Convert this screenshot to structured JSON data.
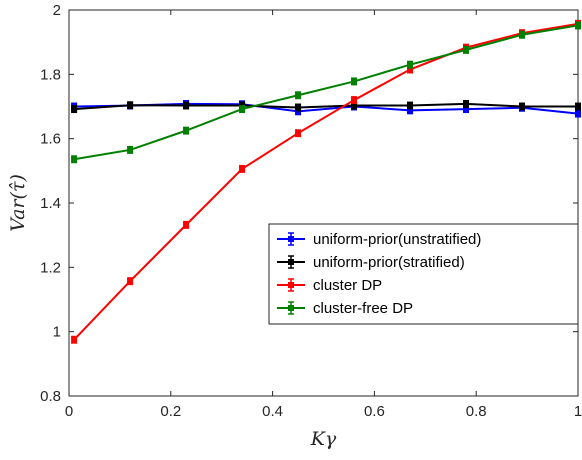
{
  "chart_data": {
    "type": "line",
    "xlabel": "Kγ",
    "ylabel": "Var(τ̂)",
    "xlim": [
      0,
      1
    ],
    "ylim": [
      0.8,
      2
    ],
    "xticks": [
      "0",
      "0.2",
      "0.4",
      "0.6",
      "0.8",
      "1"
    ],
    "yticks": [
      "0.8",
      "1",
      "1.2",
      "1.4",
      "1.6",
      "1.8",
      "2"
    ],
    "grid": false,
    "legend_position": "lower-right",
    "x": [
      0.01,
      0.12,
      0.23,
      0.34,
      0.45,
      0.56,
      0.67,
      0.78,
      0.89,
      1.0
    ],
    "series": [
      {
        "name": "uniform-prior(unstratified)",
        "color": "#0000ff",
        "values": [
          1.7,
          1.703,
          1.708,
          1.707,
          1.685,
          1.7,
          1.688,
          1.692,
          1.696,
          1.678
        ],
        "errors": [
          0.01,
          0.01,
          0.01,
          0.01,
          0.01,
          0.01,
          0.01,
          0.01,
          0.01,
          0.01
        ]
      },
      {
        "name": "uniform-prior(stratified)",
        "color": "#000000",
        "values": [
          1.692,
          1.704,
          1.703,
          1.703,
          1.697,
          1.703,
          1.703,
          1.708,
          1.7,
          1.7
        ],
        "errors": [
          0.01,
          0.01,
          0.01,
          0.01,
          0.01,
          0.01,
          0.01,
          0.01,
          0.01,
          0.01
        ]
      },
      {
        "name": "cluster DP",
        "color": "#ff0000",
        "values": [
          0.975,
          1.157,
          1.332,
          1.506,
          1.617,
          1.72,
          1.815,
          1.883,
          1.928,
          1.957
        ],
        "errors": [
          0.01,
          0.01,
          0.01,
          0.01,
          0.01,
          0.01,
          0.01,
          0.01,
          0.01,
          0.01
        ]
      },
      {
        "name": "cluster-free DP",
        "color": "#008000",
        "values": [
          1.536,
          1.565,
          1.625,
          1.692,
          1.735,
          1.778,
          1.83,
          1.876,
          1.923,
          1.952
        ],
        "errors": [
          0.01,
          0.01,
          0.01,
          0.01,
          0.01,
          0.01,
          0.01,
          0.01,
          0.01,
          0.01
        ]
      }
    ]
  }
}
